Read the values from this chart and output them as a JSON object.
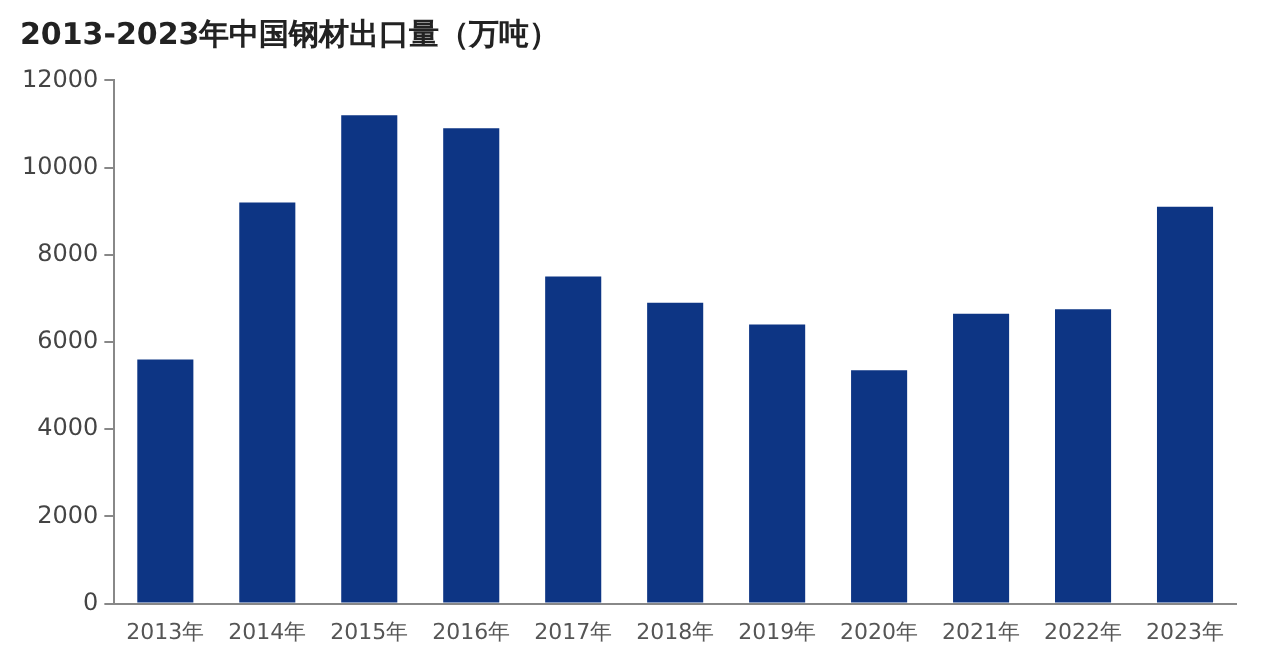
{
  "chart_data": {
    "type": "bar",
    "title": "2013-2023年中国钢材出口量（万吨）",
    "categories": [
      "2013年",
      "2014年",
      "2015年",
      "2016年",
      "2017年",
      "2018年",
      "2019年",
      "2020年",
      "2021年",
      "2022年",
      "2023年"
    ],
    "values": [
      5600,
      9200,
      11200,
      10900,
      7500,
      6900,
      6400,
      5350,
      6650,
      6750,
      9100
    ],
    "color": "#0d3584",
    "ylim": [
      0,
      12000
    ],
    "yticks": [
      0,
      2000,
      4000,
      6000,
      8000,
      10000,
      12000
    ],
    "grid": false,
    "legend": false
  }
}
